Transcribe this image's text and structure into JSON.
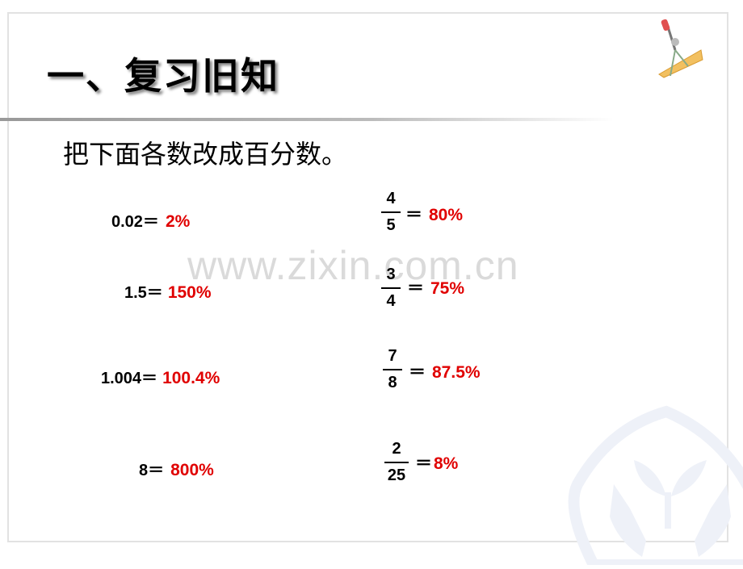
{
  "title": "一、复习旧知",
  "prompt": "把下面各数改成百分数。",
  "watermark": "www.zixin.com.cn",
  "colors": {
    "answer": "#e00000"
  },
  "left_items": [
    {
      "expr": "0.02＝",
      "answer": "2%"
    },
    {
      "expr": "1.5＝",
      "answer": "150%"
    },
    {
      "expr": "1.004＝",
      "answer": "100.4%"
    },
    {
      "expr": "8＝",
      "answer": "800%"
    }
  ],
  "right_items": [
    {
      "numerator": "4",
      "denominator": "5",
      "eq": "＝",
      "answer": "80%"
    },
    {
      "numerator": "3",
      "denominator": "4",
      "eq": "＝",
      "answer": "75%"
    },
    {
      "numerator": "7",
      "denominator": "8",
      "eq": "＝",
      "answer": "87.5%"
    },
    {
      "numerator": "2",
      "denominator": "25",
      "eq": "＝",
      "answer": "8%"
    }
  ]
}
